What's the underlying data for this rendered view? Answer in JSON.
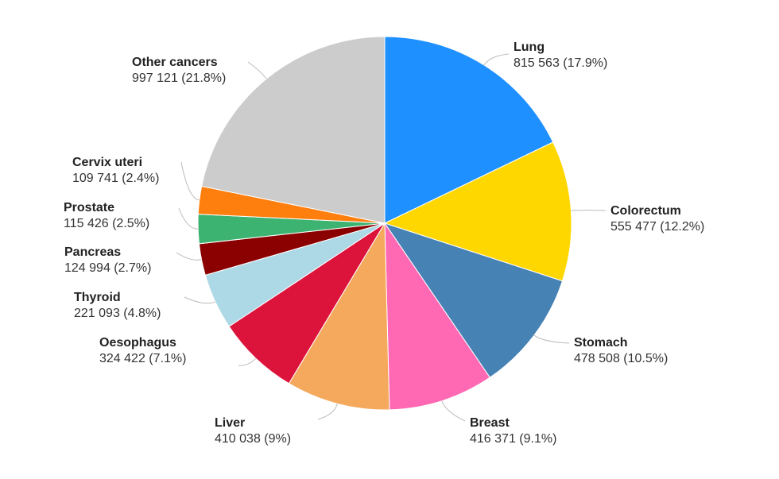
{
  "chart_data": {
    "type": "pie",
    "start": "top",
    "direction": "clockwise",
    "slices": [
      {
        "name": "Lung",
        "value": 815563,
        "label_value": "815 563 (17.9%)",
        "color": "#1e90ff"
      },
      {
        "name": "Colorectum",
        "value": 555477,
        "label_value": "555 477 (12.2%)",
        "color": "#ffd700"
      },
      {
        "name": "Stomach",
        "value": 478508,
        "label_value": "478 508 (10.5%)",
        "color": "#4682b4"
      },
      {
        "name": "Breast",
        "value": 416371,
        "label_value": "416 371 (9.1%)",
        "color": "#ff69b4"
      },
      {
        "name": "Liver",
        "value": 410038,
        "label_value": "410 038 (9%)",
        "color": "#f4a95c"
      },
      {
        "name": "Oesophagus",
        "value": 324422,
        "label_value": "324 422 (7.1%)",
        "color": "#dc143c"
      },
      {
        "name": "Thyroid",
        "value": 221093,
        "label_value": "221 093 (4.8%)",
        "color": "#add8e6"
      },
      {
        "name": "Pancreas",
        "value": 124994,
        "label_value": "124 994 (2.7%)",
        "color": "#8b0000"
      },
      {
        "name": "Prostate",
        "value": 115426,
        "label_value": "115 426 (2.5%)",
        "color": "#3cb371"
      },
      {
        "name": "Cervix uteri",
        "value": 109741,
        "label_value": "109 741 (2.4%)",
        "color": "#ff7f0e"
      },
      {
        "name": "Other cancers",
        "value": 997121,
        "label_value": "997 121 (21.8%)",
        "color": "#cccccc"
      }
    ]
  }
}
